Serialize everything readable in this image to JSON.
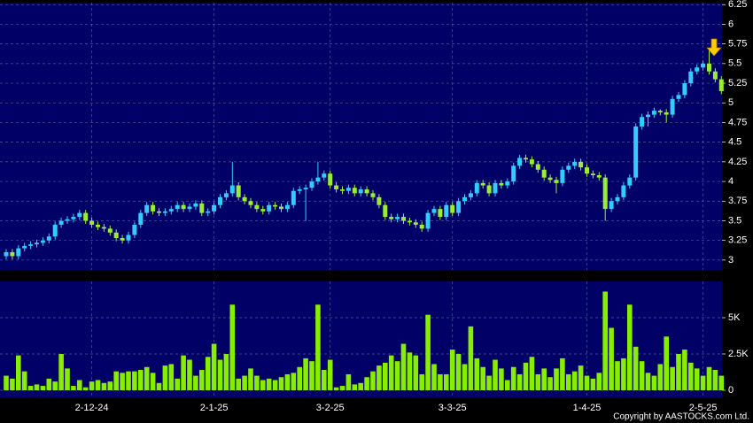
{
  "chart_data": [
    {
      "type": "candlestick",
      "categories": [
        null,
        null,
        null,
        null,
        null,
        null,
        null,
        null,
        null,
        null,
        null,
        null,
        null,
        null,
        "2-12-24",
        null,
        null,
        null,
        null,
        null,
        null,
        null,
        null,
        null,
        null,
        null,
        null,
        null,
        null,
        null,
        null,
        null,
        null,
        null,
        "2-1-25",
        null,
        null,
        null,
        null,
        null,
        null,
        null,
        null,
        null,
        null,
        null,
        null,
        null,
        null,
        null,
        null,
        null,
        null,
        "3-2-25",
        null,
        null,
        null,
        null,
        null,
        null,
        null,
        null,
        null,
        null,
        null,
        null,
        null,
        null,
        null,
        null,
        null,
        null,
        null,
        "3-3-25",
        null,
        null,
        null,
        null,
        null,
        null,
        null,
        null,
        null,
        null,
        null,
        null,
        null,
        null,
        null,
        null,
        null,
        null,
        null,
        null,
        null,
        "1-4-25",
        null,
        null,
        null,
        null,
        null,
        null,
        null,
        null,
        null,
        null,
        null,
        null,
        null,
        null,
        null,
        null,
        null,
        null,
        "2-5-25",
        null,
        null,
        null
      ],
      "open": [
        3.05,
        3.1,
        3.05,
        3.15,
        3.18,
        3.2,
        3.22,
        3.25,
        3.3,
        3.45,
        3.5,
        3.52,
        3.55,
        3.6,
        3.5,
        3.45,
        3.42,
        3.4,
        3.35,
        3.28,
        3.25,
        3.32,
        3.45,
        3.6,
        3.7,
        3.62,
        3.6,
        3.62,
        3.65,
        3.7,
        3.65,
        3.68,
        3.72,
        3.6,
        3.62,
        3.7,
        3.8,
        3.85,
        3.95,
        3.8,
        3.75,
        3.7,
        3.65,
        3.62,
        3.7,
        3.68,
        3.65,
        3.7,
        3.88,
        3.9,
        3.92,
        4.0,
        4.05,
        4.1,
        3.95,
        3.9,
        3.88,
        3.92,
        3.85,
        3.9,
        3.85,
        3.8,
        3.7,
        3.55,
        3.52,
        3.55,
        3.5,
        3.48,
        3.45,
        3.4,
        3.6,
        3.65,
        3.55,
        3.7,
        3.6,
        3.75,
        3.8,
        3.85,
        3.98,
        3.95,
        3.85,
        3.98,
        3.95,
        4.0,
        4.2,
        4.3,
        4.28,
        4.22,
        4.15,
        4.05,
        4.02,
        3.98,
        4.15,
        4.2,
        4.25,
        4.18,
        4.1,
        4.08,
        4.05,
        3.65,
        3.75,
        3.8,
        3.95,
        4.05,
        4.7,
        4.82,
        4.85,
        4.9,
        4.88,
        4.85,
        5.05,
        5.1,
        5.25,
        5.4,
        5.45,
        5.5,
        5.4,
        5.3
      ],
      "high": [
        3.14,
        3.14,
        3.19,
        3.22,
        3.24,
        3.26,
        3.29,
        3.34,
        3.49,
        3.54,
        3.56,
        3.59,
        3.64,
        3.64,
        3.54,
        3.49,
        3.46,
        3.44,
        3.39,
        3.32,
        3.36,
        3.49,
        3.64,
        3.74,
        3.74,
        3.66,
        3.66,
        3.69,
        3.74,
        3.74,
        3.72,
        3.76,
        3.76,
        3.66,
        3.74,
        3.84,
        3.89,
        4.25,
        3.99,
        3.84,
        3.79,
        3.74,
        3.69,
        3.74,
        3.74,
        3.72,
        3.74,
        3.92,
        3.94,
        3.96,
        4.04,
        4.25,
        4.14,
        4.14,
        3.99,
        3.94,
        3.96,
        3.96,
        3.94,
        3.94,
        3.89,
        3.84,
        3.74,
        3.59,
        3.59,
        3.59,
        3.54,
        3.52,
        3.49,
        3.64,
        3.69,
        3.69,
        3.74,
        3.74,
        3.79,
        3.84,
        3.89,
        4.02,
        4.02,
        3.99,
        4.02,
        4.02,
        4.04,
        4.24,
        4.34,
        4.34,
        4.32,
        4.26,
        4.19,
        4.09,
        4.06,
        4.19,
        4.24,
        4.29,
        4.29,
        4.22,
        4.14,
        4.12,
        4.09,
        3.79,
        3.84,
        3.99,
        4.09,
        4.74,
        4.86,
        4.89,
        4.94,
        4.92,
        4.92,
        5.09,
        5.14,
        5.29,
        5.44,
        5.49,
        5.54,
        5.7,
        5.44,
        5.34
      ],
      "low": [
        3.01,
        3.01,
        3.01,
        3.11,
        3.14,
        3.16,
        3.18,
        3.21,
        3.26,
        3.41,
        3.46,
        3.48,
        3.51,
        3.46,
        3.41,
        3.38,
        3.36,
        3.31,
        3.24,
        3.21,
        3.21,
        3.28,
        3.41,
        3.56,
        3.58,
        3.56,
        3.56,
        3.58,
        3.61,
        3.61,
        3.61,
        3.64,
        3.56,
        3.56,
        3.58,
        3.66,
        3.76,
        3.81,
        3.76,
        3.71,
        3.66,
        3.61,
        3.58,
        3.58,
        3.64,
        3.61,
        3.61,
        3.66,
        3.84,
        3.5,
        3.88,
        3.96,
        4.01,
        3.91,
        3.86,
        3.84,
        3.84,
        3.81,
        3.81,
        3.81,
        3.76,
        3.66,
        3.51,
        3.48,
        3.48,
        3.46,
        3.44,
        3.41,
        3.36,
        3.36,
        3.56,
        3.51,
        3.51,
        3.56,
        3.56,
        3.71,
        3.76,
        3.81,
        3.91,
        3.81,
        3.81,
        3.91,
        3.91,
        3.96,
        4.16,
        4.24,
        4.18,
        4.11,
        4.01,
        3.98,
        3.85,
        3.94,
        4.11,
        4.16,
        4.14,
        4.06,
        4.04,
        4.01,
        3.5,
        3.61,
        3.71,
        3.76,
        3.91,
        4.01,
        4.66,
        4.7,
        4.81,
        4.84,
        4.75,
        4.81,
        5.01,
        5.06,
        5.21,
        5.36,
        5.41,
        5.36,
        5.26,
        5.11
      ],
      "close": [
        3.1,
        3.05,
        3.15,
        3.18,
        3.2,
        3.22,
        3.25,
        3.3,
        3.45,
        3.5,
        3.52,
        3.55,
        3.6,
        3.5,
        3.45,
        3.42,
        3.4,
        3.35,
        3.28,
        3.25,
        3.32,
        3.45,
        3.6,
        3.7,
        3.62,
        3.6,
        3.62,
        3.65,
        3.7,
        3.65,
        3.68,
        3.72,
        3.6,
        3.62,
        3.7,
        3.8,
        3.85,
        3.95,
        3.8,
        3.75,
        3.7,
        3.65,
        3.62,
        3.7,
        3.68,
        3.65,
        3.7,
        3.88,
        3.9,
        3.92,
        4.0,
        4.05,
        4.1,
        3.95,
        3.9,
        3.88,
        3.92,
        3.85,
        3.9,
        3.85,
        3.8,
        3.7,
        3.55,
        3.52,
        3.55,
        3.5,
        3.48,
        3.45,
        3.4,
        3.6,
        3.65,
        3.55,
        3.7,
        3.6,
        3.75,
        3.8,
        3.85,
        3.98,
        3.95,
        3.85,
        3.98,
        3.95,
        4.0,
        4.2,
        4.3,
        4.28,
        4.22,
        4.15,
        4.05,
        4.02,
        3.98,
        4.15,
        4.2,
        4.25,
        4.18,
        4.1,
        4.08,
        4.05,
        3.65,
        3.75,
        3.8,
        3.95,
        4.05,
        4.7,
        4.82,
        4.85,
        4.9,
        4.88,
        4.85,
        5.05,
        5.1,
        5.25,
        5.4,
        5.45,
        5.5,
        5.4,
        5.3,
        5.15
      ],
      "up_color": "#33ccff",
      "down_color": "#99ee33",
      "ylim": [
        2.875,
        6.275
      ],
      "yticks": [
        3,
        3.25,
        3.5,
        3.75,
        4,
        4.25,
        4.5,
        4.75,
        5,
        5.25,
        5.5,
        5.75,
        6,
        6.25
      ],
      "grid": true
    },
    {
      "type": "bar",
      "values": [
        1000,
        800,
        2400,
        1300,
        300,
        400,
        300,
        800,
        600,
        2500,
        1500,
        300,
        700,
        200,
        600,
        700,
        500,
        600,
        1300,
        1200,
        1300,
        1300,
        1400,
        1600,
        1200,
        500,
        1700,
        1800,
        800,
        2400,
        2100,
        1000,
        1400,
        2300,
        3200,
        2100,
        2500,
        5900,
        800,
        1000,
        1500,
        1000,
        700,
        800,
        700,
        900,
        1100,
        1200,
        1600,
        2200,
        2000,
        5900,
        1400,
        2100,
        200,
        300,
        1100,
        400,
        500,
        900,
        1300,
        1700,
        1900,
        2400,
        2000,
        3200,
        2600,
        2400,
        1100,
        5200,
        1800,
        1100,
        1100,
        2800,
        2500,
        1800,
        4400,
        2200,
        1600,
        1000,
        2100,
        1500,
        700,
        1600,
        1100,
        1900,
        2300,
        1100,
        1500,
        900,
        1500,
        2200,
        1100,
        1300,
        1700,
        1000,
        800,
        1200,
        6800,
        4300,
        2000,
        2200,
        5900,
        3000,
        2000,
        1200,
        1000,
        1800,
        3700,
        1600,
        2500,
        2800,
        1900,
        1500,
        1000,
        1600,
        1400,
        1000
      ],
      "color": "#88ee00",
      "ylim": [
        -550,
        7500
      ],
      "yticks": [
        0,
        {
          "value": 2500,
          "label": "2.5K"
        },
        {
          "value": 5000,
          "label": "5K"
        }
      ],
      "grid": true
    }
  ],
  "copyright": "Copyright by AASTOCKS.com Ltd."
}
